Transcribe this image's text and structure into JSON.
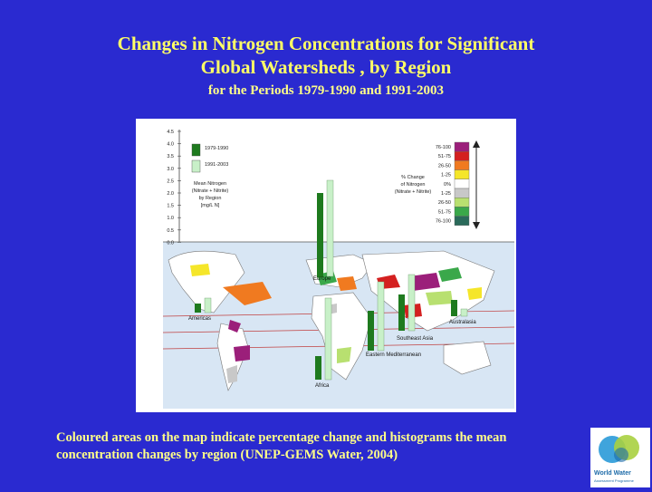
{
  "slide": {
    "title_line1": "Changes in Nitrogen Concentrations for Significant",
    "title_line2": "Global Watersheds , by Region",
    "subtitle": "for the Periods 1979-1990 and 1991-2003",
    "caption_line1": "Coloured areas on the map indicate percentage change and histograms the mean",
    "caption_line2": "concentration changes by region (UNEP-GEMS Water, 2004)"
  },
  "figure": {
    "y_ticks": [
      "4.5",
      "4.0",
      "3.5",
      "3.0",
      "2.5",
      "2.0",
      "1.5",
      "1.0",
      "0.5",
      "0.0"
    ],
    "legend_periods": [
      {
        "label": "1979-1990",
        "color": "#1e7a1e"
      },
      {
        "label": "1991-2003",
        "color": "#c8f0c8"
      }
    ],
    "mean_label": [
      "Mean Nitrogen",
      "(Nitrate + Nitrite)",
      "by Region",
      "[mg/L N]"
    ],
    "pct_label": [
      "% Change",
      "of Nitrogen",
      "(Nitrate + Nitrite)"
    ],
    "pct_classes": [
      {
        "label": "76-100",
        "color": "#9b1f7a"
      },
      {
        "label": "51-75",
        "color": "#d42020"
      },
      {
        "label": "26-50",
        "color": "#f07a20"
      },
      {
        "label": "1-25",
        "color": "#f5e62a"
      },
      {
        "label": "0%",
        "color": "#ffffff"
      },
      {
        "label": "1-25",
        "color": "#c8c8c8"
      },
      {
        "label": "26-50",
        "color": "#b8e070"
      },
      {
        "label": "51-75",
        "color": "#3aa84a"
      },
      {
        "label": "76-100",
        "color": "#2a6a5a"
      }
    ],
    "regions": [
      "Europe",
      "Americas",
      "Australasia",
      "Southeast Asia",
      "Eastern Mediterranean",
      "Africa"
    ]
  },
  "logo": {
    "text_main": "World Water",
    "text_sub": "Assessment Programme"
  }
}
